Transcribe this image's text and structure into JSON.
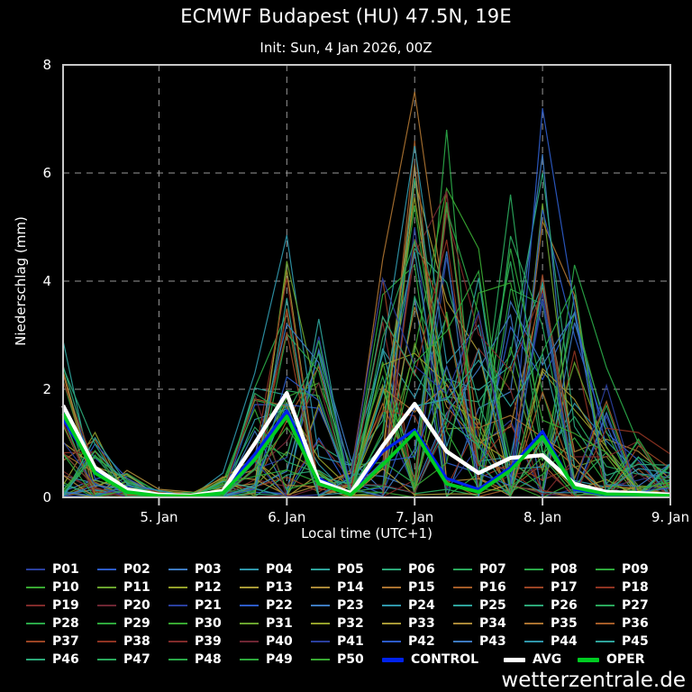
{
  "header": {
    "title": "ECMWF Budapest (HU) 47.5N, 19E",
    "subtitle": "Init: Sun, 4 Jan 2026, 00Z"
  },
  "footer": {
    "watermark": "wetterzentrale.de"
  },
  "colors": {
    "background": "#000000",
    "frame": "#c8c8c8",
    "grid": "#999999",
    "text": "#ffffff",
    "control": "#0022ee",
    "avg": "#ffffff",
    "oper": "#00cc22"
  },
  "chart_data": {
    "type": "line",
    "title": "ECMWF Budapest (HU) 47.5N, 19E",
    "subtitle": "Init: Sun, 4 Jan 2026, 00Z",
    "xlabel": "Local time (UTC+1)",
    "ylabel": "Niederschlag (mm)",
    "ylim": [
      0,
      8
    ],
    "y_ticks": [
      0,
      2,
      4,
      6,
      8
    ],
    "x_tick_labels": [
      "5. Jan",
      "6. Jan",
      "7. Jan",
      "8. Jan",
      "9. Jan"
    ],
    "x_tick_point_index": [
      3,
      7,
      11,
      15,
      19
    ],
    "x_start": "4. Jan 06:00 local",
    "x_step_hours": 6,
    "n_points": 20,
    "grid": "dashed",
    "legend_position": "below",
    "series": [
      {
        "name": "CONTROL",
        "color": "#0022ee",
        "values": [
          1.45,
          0.5,
          0.12,
          0.03,
          0.02,
          0.1,
          0.8,
          1.6,
          0.35,
          0.06,
          0.85,
          1.25,
          0.35,
          0.15,
          0.55,
          1.22,
          0.15,
          0.05,
          0.04,
          0.02
        ]
      },
      {
        "name": "AVG",
        "color": "#ffffff",
        "values": [
          1.7,
          0.55,
          0.15,
          0.05,
          0.03,
          0.12,
          1.0,
          1.93,
          0.3,
          0.08,
          0.95,
          1.73,
          0.85,
          0.45,
          0.73,
          0.78,
          0.25,
          0.1,
          0.08,
          0.05
        ]
      },
      {
        "name": "OPER",
        "color": "#00cc22",
        "values": [
          1.55,
          0.45,
          0.1,
          0.03,
          0.02,
          0.08,
          0.7,
          1.5,
          0.25,
          0.05,
          0.6,
          1.2,
          0.25,
          0.1,
          0.5,
          1.12,
          0.18,
          0.06,
          0.05,
          0.03
        ]
      }
    ],
    "ensemble": {
      "description": "50 perturbed ECMWF ensemble member precipitation traces (values not individually labeled in source; envelope read from plot)",
      "envelope_max": [
        2.9,
        1.2,
        0.5,
        0.15,
        0.1,
        0.45,
        2.3,
        4.85,
        3.3,
        0.7,
        4.4,
        7.5,
        6.8,
        4.6,
        5.6,
        7.2,
        4.3,
        2.4,
        1.2,
        0.8
      ],
      "peak_member_index": [
        4,
        11,
        13,
        13,
        13,
        23,
        23,
        23,
        4,
        2,
        14,
        14,
        7,
        9,
        46,
        41,
        27,
        27,
        37,
        37
      ]
    }
  },
  "legend": {
    "members": [
      {
        "label": "P01",
        "color": "#2a3f9e"
      },
      {
        "label": "P02",
        "color": "#2d5bc8"
      },
      {
        "label": "P03",
        "color": "#3d7ac0"
      },
      {
        "label": "P04",
        "color": "#2f96aa"
      },
      {
        "label": "P05",
        "color": "#2ea39b"
      },
      {
        "label": "P06",
        "color": "#2ca878"
      },
      {
        "label": "P07",
        "color": "#2aa85c"
      },
      {
        "label": "P08",
        "color": "#2aa848"
      },
      {
        "label": "P09",
        "color": "#2ea83c"
      },
      {
        "label": "P10",
        "color": "#38a832"
      },
      {
        "label": "P11",
        "color": "#6aa42e"
      },
      {
        "label": "P12",
        "color": "#94a02a"
      },
      {
        "label": "P13",
        "color": "#a89936"
      },
      {
        "label": "P14",
        "color": "#aa8838"
      },
      {
        "label": "P15",
        "color": "#aa7230"
      },
      {
        "label": "P16",
        "color": "#a45c28"
      },
      {
        "label": "P17",
        "color": "#9a4424"
      },
      {
        "label": "P18",
        "color": "#8e3322"
      },
      {
        "label": "P19",
        "color": "#802b2a"
      },
      {
        "label": "P20",
        "color": "#6e2633"
      },
      {
        "label": "P21",
        "color": "#2a3f9e"
      },
      {
        "label": "P22",
        "color": "#2d5bc8"
      },
      {
        "label": "P23",
        "color": "#3d7ac0"
      },
      {
        "label": "P24",
        "color": "#2f96aa"
      },
      {
        "label": "P25",
        "color": "#2ea39b"
      },
      {
        "label": "P26",
        "color": "#2ca878"
      },
      {
        "label": "P27",
        "color": "#2aa85c"
      },
      {
        "label": "P28",
        "color": "#2aa848"
      },
      {
        "label": "P29",
        "color": "#2ea83c"
      },
      {
        "label": "P30",
        "color": "#38a832"
      },
      {
        "label": "P31",
        "color": "#6aa42e"
      },
      {
        "label": "P32",
        "color": "#94a02a"
      },
      {
        "label": "P33",
        "color": "#a89936"
      },
      {
        "label": "P34",
        "color": "#aa8838"
      },
      {
        "label": "P35",
        "color": "#aa7230"
      },
      {
        "label": "P36",
        "color": "#a45c28"
      },
      {
        "label": "P37",
        "color": "#9a4424"
      },
      {
        "label": "P38",
        "color": "#8e3322"
      },
      {
        "label": "P39",
        "color": "#802b2a"
      },
      {
        "label": "P40",
        "color": "#6e2633"
      },
      {
        "label": "P41",
        "color": "#2a3f9e"
      },
      {
        "label": "P42",
        "color": "#2d5bc8"
      },
      {
        "label": "P43",
        "color": "#3d7ac0"
      },
      {
        "label": "P44",
        "color": "#2f96aa"
      },
      {
        "label": "P45",
        "color": "#2ea39b"
      },
      {
        "label": "P46",
        "color": "#2ca878"
      },
      {
        "label": "P47",
        "color": "#2aa85c"
      },
      {
        "label": "P48",
        "color": "#2aa848"
      },
      {
        "label": "P49",
        "color": "#2ea83c"
      },
      {
        "label": "P50",
        "color": "#38a832"
      }
    ],
    "extras": [
      {
        "label": "CONTROL",
        "color": "#0022ee"
      },
      {
        "label": "AVG",
        "color": "#ffffff"
      },
      {
        "label": "OPER",
        "color": "#00cc22"
      }
    ]
  }
}
